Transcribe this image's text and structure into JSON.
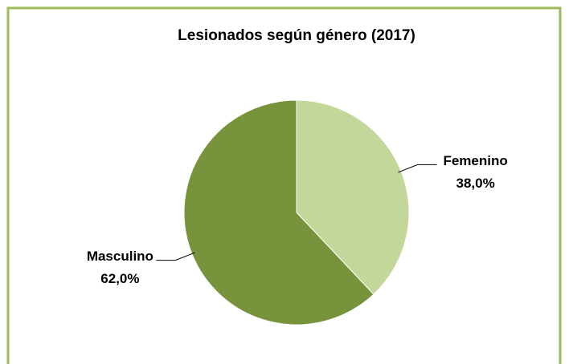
{
  "chart_data": {
    "type": "pie",
    "title": "Lesionados según género (2017)",
    "categories": [
      "Femenino",
      "Masculino"
    ],
    "values": [
      38.0,
      62.0
    ],
    "value_labels": [
      "38,0%",
      "62,0%"
    ],
    "colors": [
      "#c4d79b",
      "#77933c"
    ]
  }
}
